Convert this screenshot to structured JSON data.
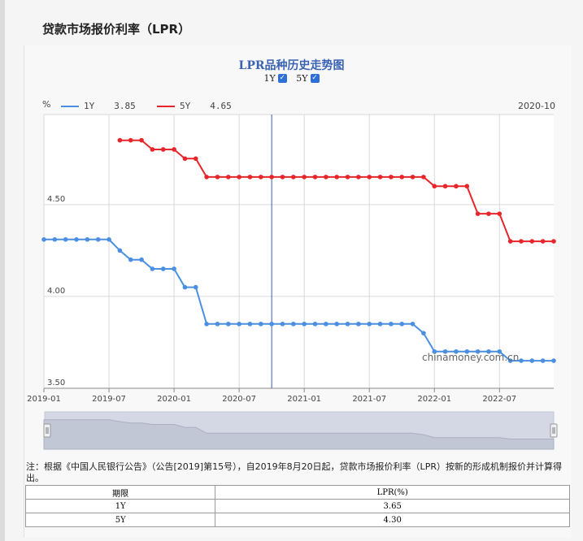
{
  "page": {
    "title": "贷款市场报价利率（LPR）"
  },
  "toggles": [
    {
      "label": "1Y",
      "checked": true
    },
    {
      "label": "5Y",
      "checked": true
    }
  ],
  "legend": {
    "unit": "%",
    "date": "2020-10",
    "items": [
      {
        "name": "1Y",
        "value": "3.85",
        "color": "#4a8fe0"
      },
      {
        "name": "5Y",
        "value": "4.65",
        "color": "#e8252a"
      }
    ]
  },
  "watermark": "chinamoney.com.cn",
  "chart_data": {
    "type": "line",
    "title": "LPR品种历史走势图",
    "xlabel": "",
    "ylabel": "%",
    "x_ticks": [
      "2019-01",
      "2019-07",
      "2020-01",
      "2020-07",
      "2021-01",
      "2021-07",
      "2022-01",
      "2022-07"
    ],
    "y_ticks": [
      "3.50",
      "4.00",
      "4.50"
    ],
    "ylim": [
      3.5,
      4.99
    ],
    "grid": true,
    "legend_position": "top-left",
    "highlight": "2020-10",
    "x": [
      "2019-01",
      "2019-02",
      "2019-03",
      "2019-04",
      "2019-05",
      "2019-06",
      "2019-07",
      "2019-08",
      "2019-09",
      "2019-10",
      "2019-11",
      "2019-12",
      "2020-01",
      "2020-02",
      "2020-03",
      "2020-04",
      "2020-05",
      "2020-06",
      "2020-07",
      "2020-08",
      "2020-09",
      "2020-10",
      "2020-11",
      "2020-12",
      "2021-01",
      "2021-02",
      "2021-03",
      "2021-04",
      "2021-05",
      "2021-06",
      "2021-07",
      "2021-08",
      "2021-09",
      "2021-10",
      "2021-11",
      "2021-12",
      "2022-01",
      "2022-02",
      "2022-03",
      "2022-04",
      "2022-05",
      "2022-06",
      "2022-07",
      "2022-08",
      "2022-09",
      "2022-10",
      "2022-11",
      "2022-12"
    ],
    "series": [
      {
        "name": "1Y",
        "color": "#4a8fe0",
        "values": [
          4.31,
          4.31,
          4.31,
          4.31,
          4.31,
          4.31,
          4.31,
          4.25,
          4.2,
          4.2,
          4.15,
          4.15,
          4.15,
          4.05,
          4.05,
          3.85,
          3.85,
          3.85,
          3.85,
          3.85,
          3.85,
          3.85,
          3.85,
          3.85,
          3.85,
          3.85,
          3.85,
          3.85,
          3.85,
          3.85,
          3.85,
          3.85,
          3.85,
          3.85,
          3.85,
          3.8,
          3.7,
          3.7,
          3.7,
          3.7,
          3.7,
          3.7,
          3.7,
          3.65,
          3.65,
          3.65,
          3.65,
          3.65
        ]
      },
      {
        "name": "5Y",
        "color": "#e8252a",
        "values": [
          null,
          null,
          null,
          null,
          null,
          null,
          null,
          4.85,
          4.85,
          4.85,
          4.8,
          4.8,
          4.8,
          4.75,
          4.75,
          4.65,
          4.65,
          4.65,
          4.65,
          4.65,
          4.65,
          4.65,
          4.65,
          4.65,
          4.65,
          4.65,
          4.65,
          4.65,
          4.65,
          4.65,
          4.65,
          4.65,
          4.65,
          4.65,
          4.65,
          4.65,
          4.6,
          4.6,
          4.6,
          4.6,
          4.45,
          4.45,
          4.45,
          4.3,
          4.3,
          4.3,
          4.3,
          4.3
        ]
      }
    ]
  },
  "note": "注：根据《中国人民银行公告》（公告[2019]第15号），自2019年8月20日起，贷款市场报价利率（LPR）按新的形成机制报价并计算得出。",
  "table": {
    "headers": [
      "期限",
      "LPR(%)"
    ],
    "rows": [
      [
        "1Y",
        "3.65"
      ],
      [
        "5Y",
        "4.30"
      ]
    ]
  }
}
